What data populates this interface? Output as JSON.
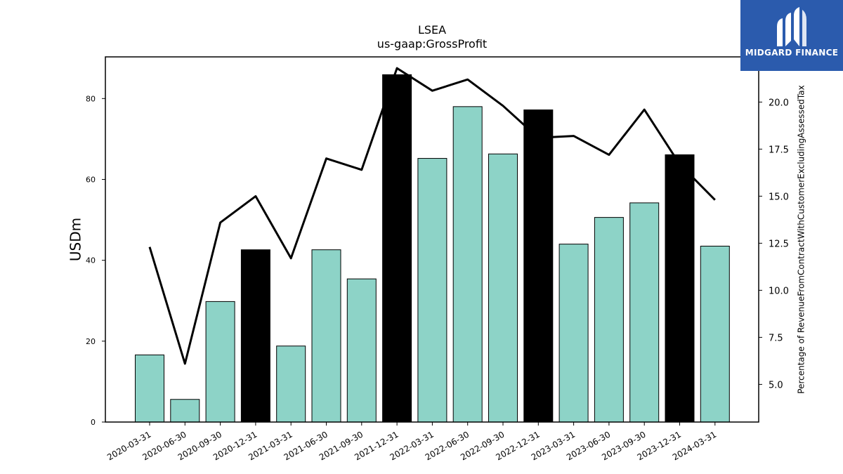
{
  "chart_data": {
    "type": "bar",
    "title": "LSEA",
    "subtitle": "us-gaap:GrossProfit",
    "ylabel": "USDm",
    "y2label": "Percentage of RevenueFromContractWithCustomerExcludingAssessedTax",
    "ylim": [
      0,
      90.3
    ],
    "y2lim": [
      3.0,
      22.4
    ],
    "yticks": [
      0,
      20,
      40,
      60,
      80
    ],
    "y2ticks": [
      "5.0",
      "7.5",
      "10.0",
      "12.5",
      "15.0",
      "17.5",
      "20.0"
    ],
    "categories": [
      "2020-03-31",
      "2020-06-30",
      "2020-09-30",
      "2020-12-31",
      "2021-03-31",
      "2021-06-30",
      "2021-09-30",
      "2021-12-31",
      "2022-03-31",
      "2022-06-30",
      "2022-09-30",
      "2022-12-31",
      "2023-03-31",
      "2023-06-30",
      "2023-09-30",
      "2023-12-31",
      "2024-03-31"
    ],
    "series": [
      {
        "values": [
          16.6,
          5.6,
          29.8,
          42.6,
          18.8,
          42.6,
          35.4,
          85.9,
          65.2,
          78.0,
          66.3,
          77.2,
          44.0,
          50.6,
          54.2,
          66.1,
          43.5
        ],
        "axis": "left"
      },
      {
        "values": [
          12.3,
          6.1,
          13.6,
          15.0,
          11.7,
          17.0,
          16.4,
          21.8,
          20.6,
          21.2,
          19.8,
          18.1,
          18.2,
          17.2,
          19.6,
          16.7,
          14.8
        ],
        "axis": "right"
      }
    ],
    "bar_colors": {
      "default": "#8dd3c7",
      "year_end": "#000000"
    },
    "line_color": "#000000",
    "grid": false
  },
  "logo": {
    "text": "MIDGARD FINANCE",
    "background": "#2b5bad"
  }
}
